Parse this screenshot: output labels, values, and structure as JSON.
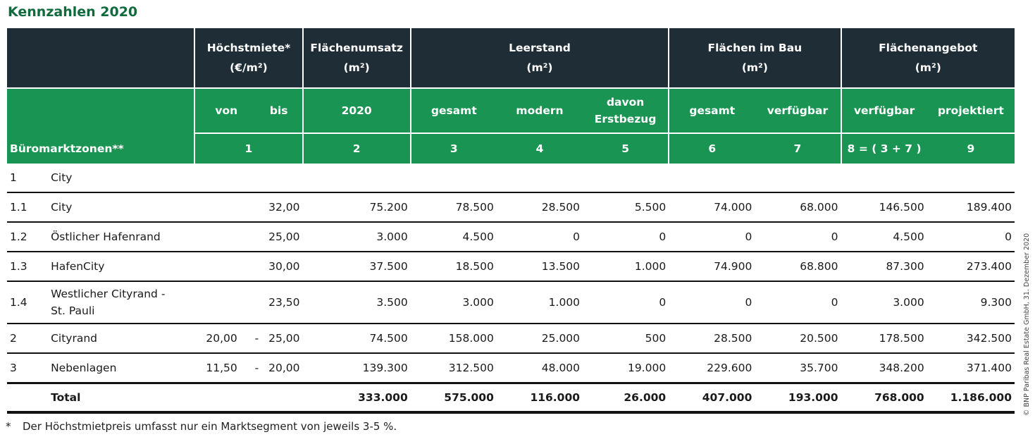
{
  "title": "Kennzahlen 2020",
  "header_groups": {
    "hoechstmiete": "Höchstmiete*",
    "hoechstmiete_unit": "(€/m²)",
    "flaechenumsatz": "Flächenumsatz",
    "flaechenumsatz_unit": "(m²)",
    "leerstand": "Leerstand",
    "leerstand_unit": "(m²)",
    "bau": "Flächen im Bau",
    "bau_unit": "(m²)",
    "angebot": "Flächenangebot",
    "angebot_unit": "(m²)"
  },
  "sub_headers": {
    "von": "von",
    "bis": "bis",
    "year": "2020",
    "gesamt": "gesamt",
    "modern": "modern",
    "erstbezug_1": "davon",
    "erstbezug_2": "Erstbezug",
    "bau_gesamt": "gesamt",
    "bau_verfuegbar": "verfügbar",
    "ang_verfuegbar": "verfügbar",
    "projektiert": "projektiert"
  },
  "column_numbers": {
    "zone_label": "Büromarktzonen**",
    "c1": "1",
    "c2": "2",
    "c3": "3",
    "c4": "4",
    "c5": "5",
    "c6": "6",
    "c7": "7",
    "c8": "8 = ( 3 + 7 )",
    "c9": "9"
  },
  "rows": [
    {
      "id": "1",
      "name": "City",
      "from": "",
      "dash": "",
      "to": "",
      "c2": "",
      "c3": "",
      "c4": "",
      "c5": "",
      "c6": "",
      "c7": "",
      "c8": "",
      "c9": ""
    },
    {
      "id": "1.1",
      "name": "City",
      "from": "",
      "dash": "",
      "to": "32,00",
      "c2": "75.200",
      "c3": "78.500",
      "c4": "28.500",
      "c5": "5.500",
      "c6": "74.000",
      "c7": "68.000",
      "c8": "146.500",
      "c9": "189.400"
    },
    {
      "id": "1.2",
      "name": "Östlicher Hafenrand",
      "from": "",
      "dash": "",
      "to": "25,00",
      "c2": "3.000",
      "c3": "4.500",
      "c4": "0",
      "c5": "0",
      "c6": "0",
      "c7": "0",
      "c8": "4.500",
      "c9": "0"
    },
    {
      "id": "1.3",
      "name": "HafenCity",
      "from": "",
      "dash": "",
      "to": "30,00",
      "c2": "37.500",
      "c3": "18.500",
      "c4": "13.500",
      "c5": "1.000",
      "c6": "74.900",
      "c7": "68.800",
      "c8": "87.300",
      "c9": "273.400"
    },
    {
      "id": "1.4",
      "name": "Westlicher Cityrand - St. Pauli",
      "from": "",
      "dash": "",
      "to": "23,50",
      "c2": "3.500",
      "c3": "3.000",
      "c4": "1.000",
      "c5": "0",
      "c6": "0",
      "c7": "0",
      "c8": "3.000",
      "c9": "9.300"
    },
    {
      "id": "2",
      "name": "Cityrand",
      "from": "20,00",
      "dash": "-",
      "to": "25,00",
      "c2": "74.500",
      "c3": "158.000",
      "c4": "25.000",
      "c5": "500",
      "c6": "28.500",
      "c7": "20.500",
      "c8": "178.500",
      "c9": "342.500"
    },
    {
      "id": "3",
      "name": "Nebenlagen",
      "from": "11,50",
      "dash": "-",
      "to": "20,00",
      "c2": "139.300",
      "c3": "312.500",
      "c4": "48.000",
      "c5": "19.000",
      "c6": "229.600",
      "c7": "35.700",
      "c8": "348.200",
      "c9": "371.400"
    }
  ],
  "total": {
    "label": "Total",
    "c2": "333.000",
    "c3": "575.000",
    "c4": "116.000",
    "c5": "26.000",
    "c6": "407.000",
    "c7": "193.000",
    "c8": "768.000",
    "c9": "1.186.000"
  },
  "footnote_star": "*",
  "footnote": "Der Höchstmietpreis umfasst nur ein Marktsegment von jeweils 3-5 %.",
  "copyright": "© BNP Paribas Real Estate GmbH, 31. Dezember 2020",
  "colors": {
    "dark_header": "#1f2d37",
    "green_header": "#1a9453",
    "title_green": "#0f6b3c"
  }
}
